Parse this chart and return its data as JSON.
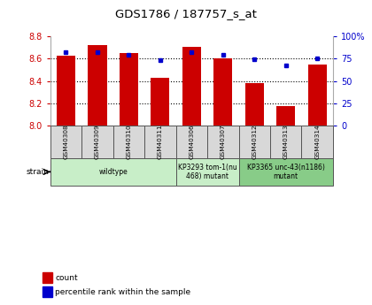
{
  "title": "GDS1786 / 187757_s_at",
  "samples": [
    "GSM40308",
    "GSM40309",
    "GSM40310",
    "GSM40311",
    "GSM40306",
    "GSM40307",
    "GSM40312",
    "GSM40313",
    "GSM40314"
  ],
  "count_values": [
    8.63,
    8.72,
    8.65,
    8.43,
    8.71,
    8.6,
    8.38,
    8.17,
    8.55
  ],
  "percentile_values": [
    82,
    82,
    79,
    73,
    82,
    79,
    74,
    67,
    75
  ],
  "ylim_left": [
    8.0,
    8.8
  ],
  "ylim_right": [
    0,
    100
  ],
  "yticks_left": [
    8.0,
    8.2,
    8.4,
    8.6,
    8.8
  ],
  "yticks_right": [
    0,
    25,
    50,
    75,
    100
  ],
  "bar_color": "#cc0000",
  "dot_color": "#0000cc",
  "bar_width": 0.6,
  "bg_color": "#ffffff",
  "strain_groups": [
    {
      "label": "wildtype",
      "start": 0,
      "end": 3,
      "color": "#c8eec8"
    },
    {
      "label": "KP3293 tom-1(nu\n468) mutant",
      "start": 4,
      "end": 5,
      "color": "#c8eec8"
    },
    {
      "label": "KP3365 unc-43(n1186)\nmutant",
      "start": 6,
      "end": 8,
      "color": "#88cc88"
    }
  ],
  "legend_count_label": "count",
  "legend_pct_label": "percentile rank within the sample",
  "left_axis_color": "#cc0000",
  "right_axis_color": "#0000cc",
  "grid_yticks": [
    8.2,
    8.4,
    8.6
  ],
  "right_ytick_labels": [
    "0",
    "25",
    "50",
    "75",
    "100%"
  ]
}
